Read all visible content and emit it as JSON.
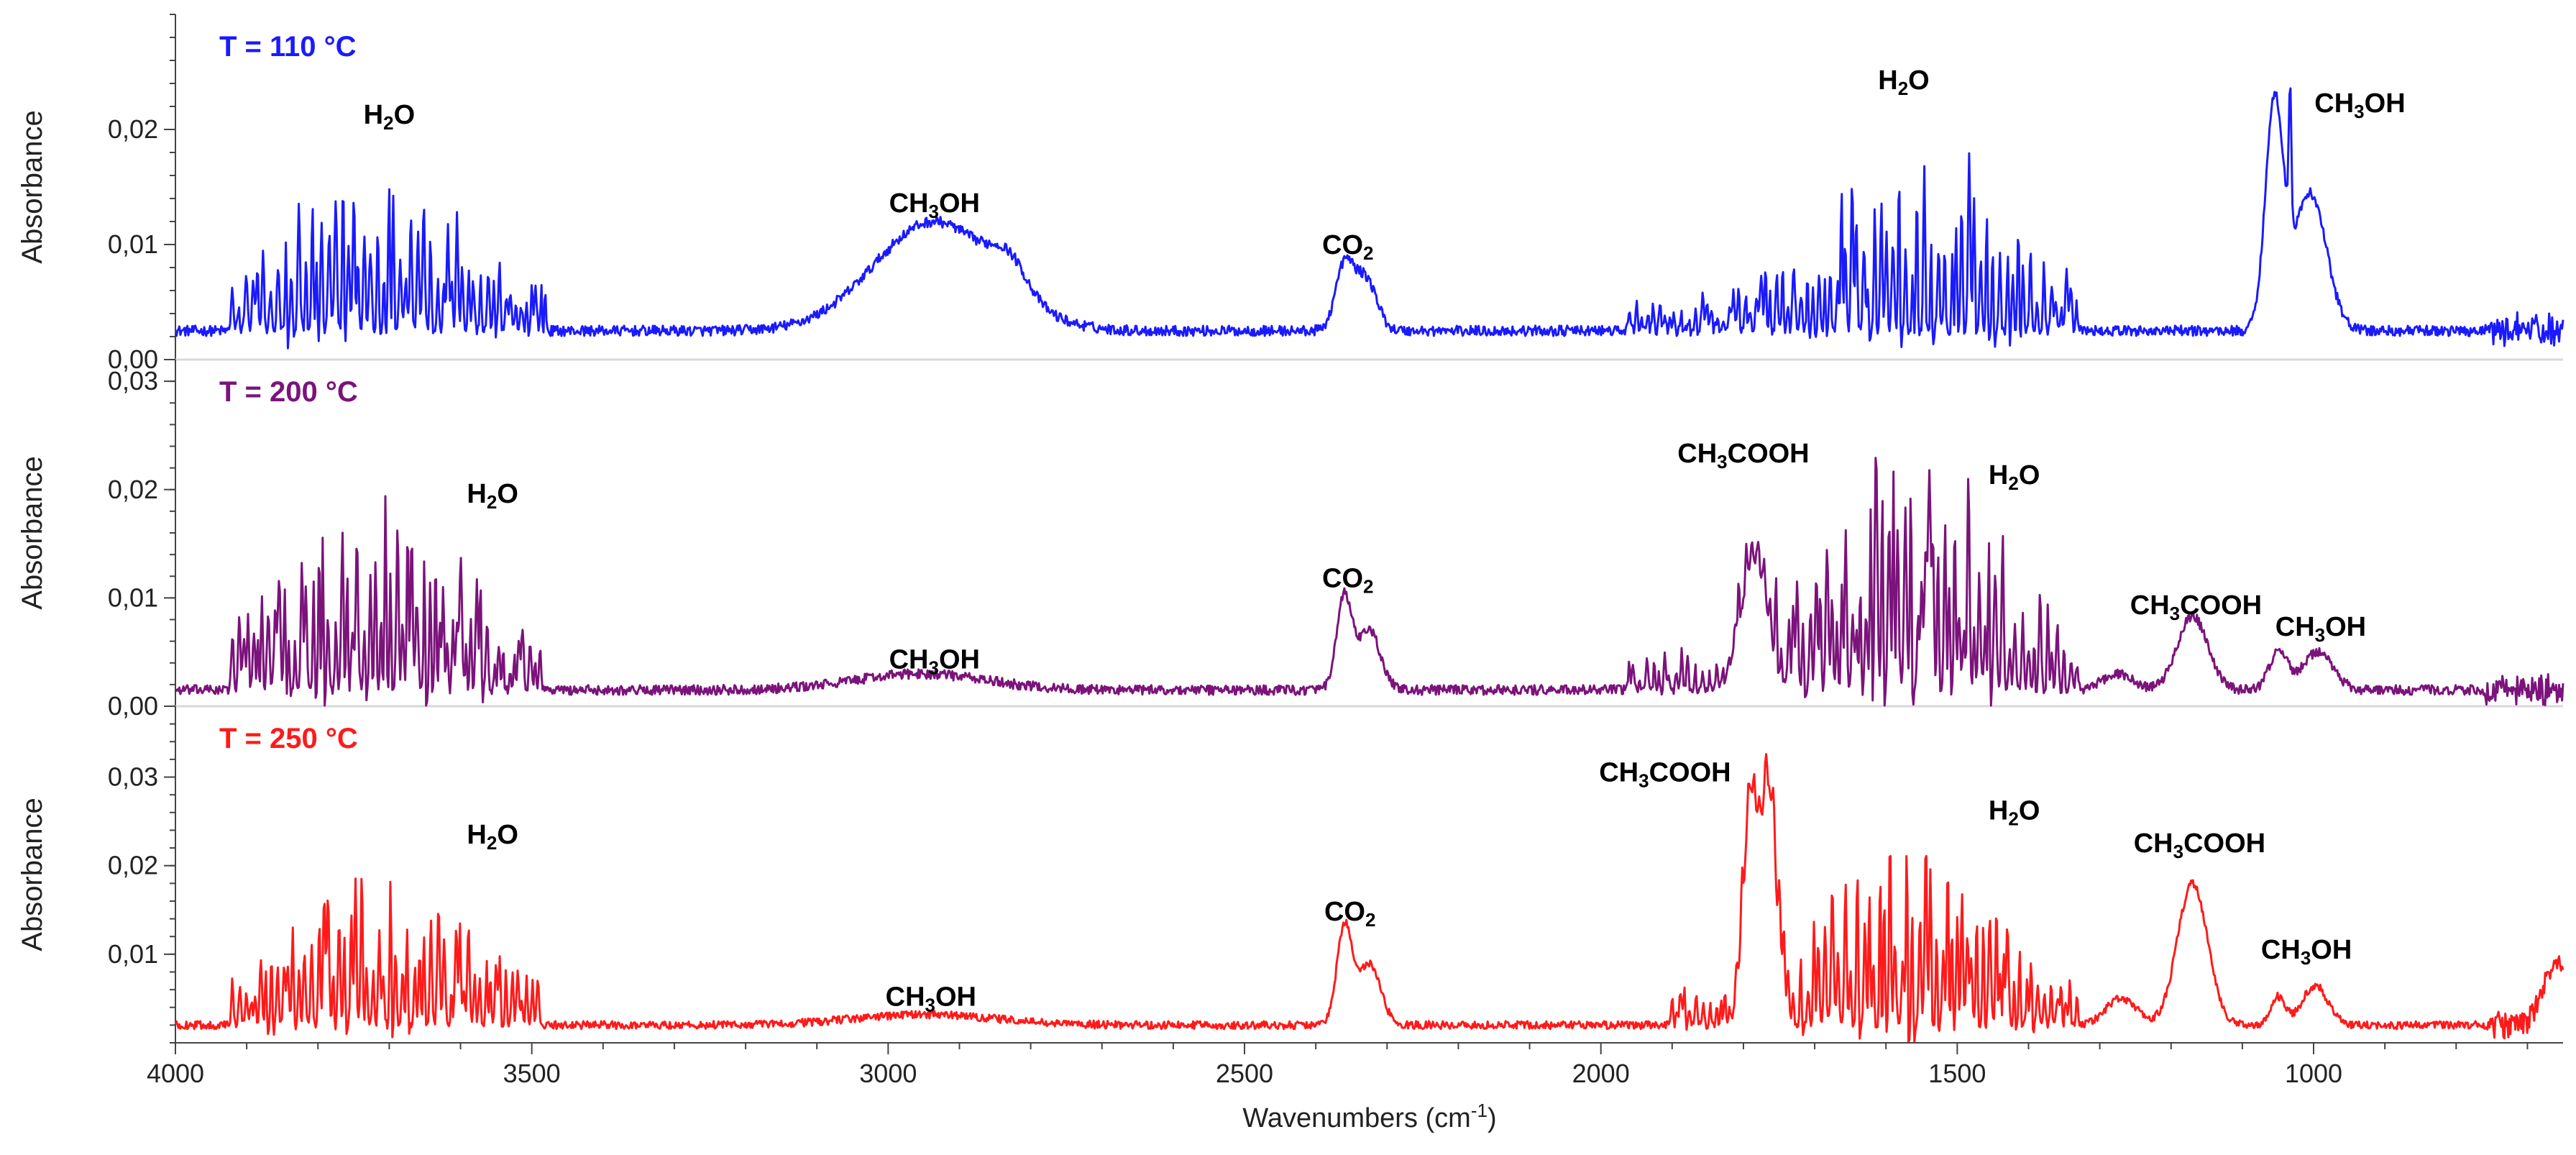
{
  "chart_data": {
    "type": "line",
    "xlabel": "Wavenumbers (cm",
    "xlabel_sup": "-1",
    "xlabel_close": ")",
    "xlim": [
      4000,
      650
    ],
    "xticks": [
      4000,
      3500,
      3000,
      2500,
      2000,
      1500,
      1000
    ],
    "panels": [
      {
        "title": "T = 110 °C",
        "color": "#1a1aff",
        "ylabel": "Absorbance",
        "ylim": [
          0,
          0.03
        ],
        "yticks": [
          {
            "v": 0,
            "t": "0,00"
          },
          {
            "v": 0.01,
            "t": "0,01"
          },
          {
            "v": 0.02,
            "t": "0,02"
          }
        ],
        "annotations": [
          {
            "text": "H2O",
            "x": 3700,
            "y": 0.0205
          },
          {
            "text": "CH3OH",
            "x": 2935,
            "y": 0.0128
          },
          {
            "text": "CO2",
            "x": 2355,
            "y": 0.0092
          },
          {
            "text": "H2O",
            "x": 1575,
            "y": 0.0235
          },
          {
            "text": "CH3OH",
            "x": 935,
            "y": 0.0215
          }
        ],
        "features": [
          {
            "type": "broad",
            "c": 2935,
            "w": 120,
            "a": 0.0095
          },
          {
            "type": "broad",
            "c": 2830,
            "w": 35,
            "a": 0.0025
          },
          {
            "type": "broad",
            "c": 2360,
            "w": 18,
            "a": 0.0055
          },
          {
            "type": "broad",
            "c": 2330,
            "w": 22,
            "a": 0.0045
          },
          {
            "type": "broad",
            "c": 1055,
            "w": 18,
            "a": 0.0195
          },
          {
            "type": "broad",
            "c": 1005,
            "w": 32,
            "a": 0.012
          },
          {
            "type": "broad",
            "c": 1033,
            "w": 2.5,
            "a": 0.012
          },
          {
            "type": "spikes",
            "start": 3920,
            "end": 3480,
            "amp": 0.016,
            "center": 3720,
            "width": 160,
            "base": 0.0035
          },
          {
            "type": "spikes",
            "start": 1960,
            "end": 1330,
            "amp": 0.019,
            "center": 1560,
            "width": 160,
            "base": 0.003
          }
        ],
        "baseline": 0.0025
      },
      {
        "title": "T = 200 °C",
        "color": "#7b137b",
        "ylabel": "Absorbance",
        "ylim": [
          0,
          0.032
        ],
        "yticks": [
          {
            "v": 0,
            "t": "0,00"
          },
          {
            "v": 0.01,
            "t": "0,01"
          },
          {
            "v": 0.02,
            "t": "0,02"
          },
          {
            "v": 0.03,
            "t": "0,03"
          }
        ],
        "annotations": [
          {
            "text": "H2O",
            "x": 3555,
            "y": 0.0188
          },
          {
            "text": "CH3OH",
            "x": 2935,
            "y": 0.0035
          },
          {
            "text": "CO2",
            "x": 2355,
            "y": 0.011
          },
          {
            "text": "CH3COOH",
            "x": 1800,
            "y": 0.0225
          },
          {
            "text": "H2O",
            "x": 1420,
            "y": 0.0205
          },
          {
            "text": "CH3COOH",
            "x": 1165,
            "y": 0.0085
          },
          {
            "text": "CH3OH",
            "x": 990,
            "y": 0.0065
          }
        ],
        "features": [
          {
            "type": "broad",
            "c": 2955,
            "w": 130,
            "a": 0.0015
          },
          {
            "type": "broad",
            "c": 2360,
            "w": 15,
            "a": 0.0085
          },
          {
            "type": "broad",
            "c": 2325,
            "w": 22,
            "a": 0.0055
          },
          {
            "type": "broad",
            "c": 1785,
            "w": 25,
            "a": 0.012
          },
          {
            "type": "broad",
            "c": 1170,
            "w": 30,
            "a": 0.0068
          },
          {
            "type": "broad",
            "c": 1050,
            "w": 18,
            "a": 0.0035
          },
          {
            "type": "broad",
            "c": 995,
            "w": 30,
            "a": 0.0035
          },
          {
            "type": "broad",
            "c": 1275,
            "w": 30,
            "a": 0.0015
          },
          {
            "type": "spikes",
            "start": 3920,
            "end": 3480,
            "amp": 0.019,
            "center": 3720,
            "width": 170,
            "base": 0.003
          },
          {
            "type": "spikes",
            "start": 1960,
            "end": 1330,
            "amp": 0.026,
            "center": 1560,
            "width": 150,
            "base": 0.003
          }
        ],
        "baseline": 0.0015
      },
      {
        "title": "T = 250 °C",
        "color": "#ff1a1a",
        "ylabel": "Absorbance",
        "ylim": [
          0,
          0.038
        ],
        "yticks": [
          {
            "v": 0.01,
            "t": "0,01"
          },
          {
            "v": 0.02,
            "t": "0,02"
          },
          {
            "v": 0.03,
            "t": "0,03"
          }
        ],
        "annotations": [
          {
            "text": "H2O",
            "x": 3555,
            "y": 0.0225
          },
          {
            "text": "CH3OH",
            "x": 2940,
            "y": 0.0042
          },
          {
            "text": "CO2",
            "x": 2352,
            "y": 0.0138
          },
          {
            "text": "CH3COOH",
            "x": 1910,
            "y": 0.0295
          },
          {
            "text": "H2O",
            "x": 1420,
            "y": 0.0252
          },
          {
            "text": "CH3COOH",
            "x": 1160,
            "y": 0.0215
          },
          {
            "text": "CH3OH",
            "x": 1010,
            "y": 0.0095
          }
        ],
        "features": [
          {
            "type": "broad",
            "c": 2950,
            "w": 140,
            "a": 0.0012
          },
          {
            "type": "broad",
            "c": 2360,
            "w": 15,
            "a": 0.011
          },
          {
            "type": "broad",
            "c": 2325,
            "w": 22,
            "a": 0.007
          },
          {
            "type": "broad",
            "c": 1790,
            "w": 14,
            "a": 0.025
          },
          {
            "type": "broad",
            "c": 1765,
            "w": 14,
            "a": 0.026
          },
          {
            "type": "broad",
            "c": 1170,
            "w": 30,
            "a": 0.016
          },
          {
            "type": "broad",
            "c": 1270,
            "w": 30,
            "a": 0.003
          },
          {
            "type": "broad",
            "c": 1050,
            "w": 15,
            "a": 0.0032
          },
          {
            "type": "broad",
            "c": 998,
            "w": 25,
            "a": 0.0045
          },
          {
            "type": "broad",
            "c": 660,
            "w": 25,
            "a": 0.007
          },
          {
            "type": "spikes",
            "start": 3920,
            "end": 3490,
            "amp": 0.019,
            "center": 3720,
            "width": 170,
            "base": 0.0025
          },
          {
            "type": "spikes",
            "start": 1900,
            "end": 1330,
            "amp": 0.024,
            "center": 1570,
            "width": 170,
            "base": 0.003
          }
        ],
        "baseline": 0.002
      }
    ]
  }
}
